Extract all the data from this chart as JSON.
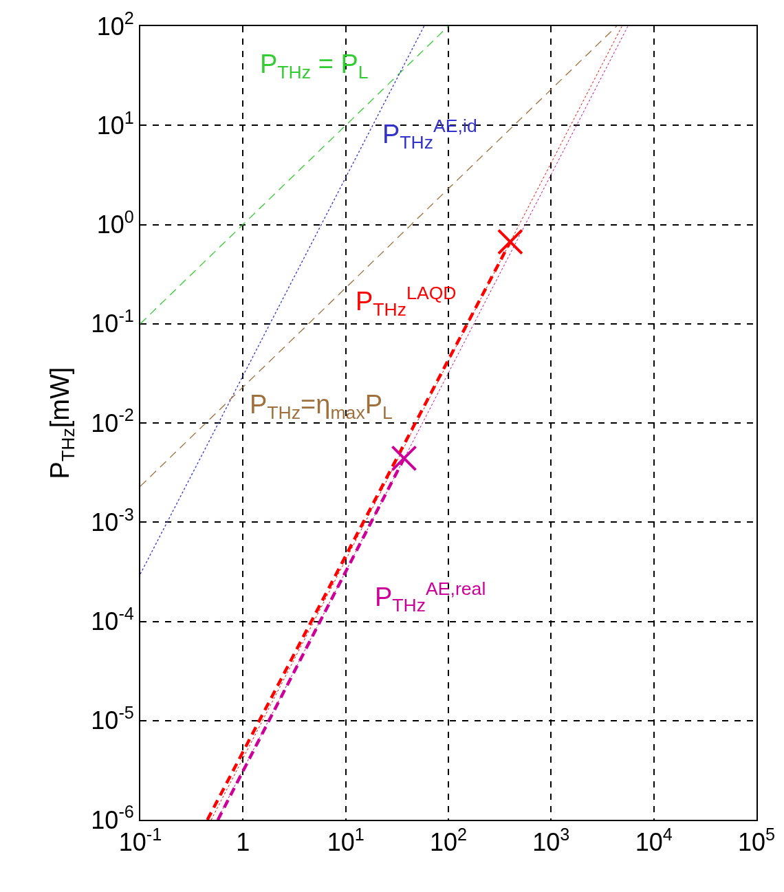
{
  "chart_data": {
    "type": "line",
    "ylabel": "P$_{THz}$[mW]",
    "log": "xy",
    "grid": true,
    "xlim": [
      0.1,
      100000
    ],
    "ylim": [
      1e-06,
      100
    ],
    "xticks": [
      {
        "value": 0.1,
        "label": "10$^{-1}$"
      },
      1,
      {
        "value": 10,
        "label": "10$^{1}$"
      },
      {
        "value": 100,
        "label": "10$^{2}$"
      },
      {
        "value": 1000,
        "label": "10$^{3}$"
      },
      {
        "value": 10000,
        "label": "10$^{4}$"
      },
      {
        "value": 100000,
        "label": "10$^{5}$"
      }
    ],
    "yticks": [
      {
        "value": 1e-06,
        "label": "10$^{-6}$"
      },
      {
        "value": 1e-05,
        "label": "10$^{-5}$"
      },
      {
        "value": 0.0001,
        "label": "10$^{-4}$"
      },
      {
        "value": 0.001,
        "label": "10$^{-3}$"
      },
      {
        "value": 0.01,
        "label": "10$^{-2}$"
      },
      {
        "value": 0.1,
        "label": "10$^{-1}$"
      },
      {
        "value": 1,
        "label": "10$^{0}$"
      },
      {
        "value": 10,
        "label": "10$^{1}$"
      },
      {
        "value": 100,
        "label": "10$^{2}$"
      }
    ],
    "series": [
      {
        "name": "P$_{THz}$ = P$_{L}$",
        "color": "#33cc33",
        "line_style": "dashed",
        "x": [
          0.1,
          100
        ],
        "values": [
          0.1,
          100
        ]
      },
      {
        "name": "P$_{THz}$$^{AE,id}$",
        "color": "#3333cc",
        "line_style": "dotted",
        "x": [
          0.1,
          58
        ],
        "values": [
          0.0003,
          100
        ]
      },
      {
        "name": "P$_{THz}$$^{LAQD}$",
        "color": "#ff0000",
        "line_style": "dashed",
        "x": [
          0.45,
          400
        ],
        "values": [
          1e-06,
          0.67
        ]
      },
      {
        "name": "P$_{THz}$=η$_{max}$P$_{L}$",
        "color": "#a0703c",
        "line_style": "dashed",
        "x": [
          0.1,
          4350
        ],
        "values": [
          0.0023,
          100
        ]
      },
      {
        "name": "P$_{THz}$$^{AE,real}$",
        "color": "#cc0099",
        "line_style": "dashed",
        "x": [
          0.57,
          37
        ],
        "values": [
          1e-06,
          0.0044
        ]
      },
      {
        "color": "#ff0000",
        "line_style": "dotted",
        "x": [
          0.49,
          4900
        ],
        "values": [
          1e-06,
          100
        ]
      },
      {
        "color": "#cc0099",
        "line_style": "dotted",
        "x": [
          0.56,
          5600
        ],
        "values": [
          1e-06,
          100
        ]
      },
      {
        "type": "scatter",
        "marker": "cross",
        "colors": [
          "#ff0000",
          "#cc0099"
        ],
        "x": [
          400,
          37
        ],
        "values": [
          0.67,
          0.0044
        ]
      }
    ]
  }
}
